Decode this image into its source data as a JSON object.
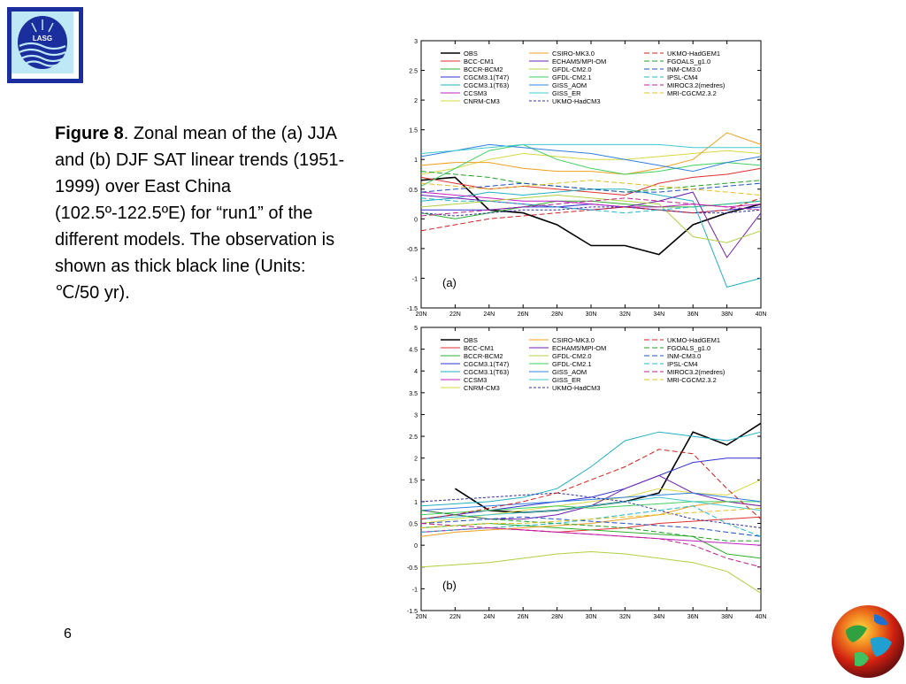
{
  "logo": {
    "text": "LASG",
    "color": "#1a2e9e"
  },
  "caption": {
    "bold": "Figure 8",
    "text": ". Zonal mean of the (a) JJA and (b) DJF SAT linear trends (1951-1999) over East China (102.5º-122.5ºE) for “run1” of the different models. The observation is shown as thick black line (Units: ℃/50 yr)."
  },
  "page_number": "6",
  "chart_data": [
    {
      "type": "line",
      "panel_label": "(a)",
      "x": [
        20,
        22,
        24,
        26,
        28,
        30,
        32,
        34,
        36,
        38,
        40
      ],
      "xticklabels": [
        "20N",
        "22N",
        "24N",
        "26N",
        "28N",
        "30N",
        "32N",
        "34N",
        "36N",
        "38N",
        "40N"
      ],
      "ylim": [
        -1.5,
        3
      ],
      "yticks": [
        -1.5,
        -1,
        -0.5,
        0,
        0.5,
        1,
        1.5,
        2,
        2.5,
        3
      ],
      "yticklabels": [
        "-1.5",
        "-1",
        "-0.5",
        "0",
        "0.5",
        "1",
        "1.5",
        "2",
        "2.5",
        "3"
      ],
      "series": [
        {
          "name": "OBS",
          "color": "#000000",
          "dash": "",
          "width": 1.6,
          "values": [
            0.65,
            0.7,
            0.15,
            0.1,
            -0.1,
            -0.45,
            -0.45,
            -0.6,
            -0.1,
            0.1,
            0.25
          ]
        },
        {
          "name": "BCC-CM1",
          "color": "#e03030",
          "dash": "",
          "values": [
            0.7,
            0.6,
            0.5,
            0.55,
            0.5,
            0.45,
            0.4,
            0.6,
            0.7,
            0.75,
            0.85
          ]
        },
        {
          "name": "BCCR-BCM2",
          "color": "#30b030",
          "dash": "",
          "values": [
            0.1,
            0.0,
            0.1,
            0.2,
            0.3,
            0.3,
            0.25,
            0.2,
            0.2,
            0.25,
            0.3
          ]
        },
        {
          "name": "CGCM3.1(T47)",
          "color": "#3030d0",
          "dash": "",
          "values": [
            0.15,
            0.15,
            0.15,
            0.2,
            0.2,
            0.25,
            0.2,
            0.15,
            0.1,
            0.15,
            0.2
          ]
        },
        {
          "name": "CGCM3.1(T63)",
          "color": "#20b0c0",
          "dash": "",
          "values": [
            0.3,
            0.35,
            0.45,
            0.4,
            0.45,
            0.5,
            0.5,
            0.4,
            0.3,
            -1.15,
            -1.0
          ]
        },
        {
          "name": "CCSM3",
          "color": "#c020c0",
          "dash": "",
          "values": [
            0.45,
            0.4,
            0.35,
            0.3,
            0.3,
            0.25,
            0.2,
            0.2,
            0.25,
            0.2,
            0.25
          ]
        },
        {
          "name": "CNRM-CM3",
          "color": "#d8d840",
          "dash": "",
          "values": [
            0.75,
            0.85,
            1.0,
            1.1,
            1.05,
            1.0,
            1.0,
            1.05,
            1.1,
            1.15,
            1.1
          ]
        },
        {
          "name": "CSIRO-MK3.0",
          "color": "#f0a020",
          "dash": "",
          "values": [
            0.9,
            0.95,
            0.95,
            0.85,
            0.8,
            0.8,
            0.75,
            0.85,
            1.0,
            1.45,
            1.25
          ]
        },
        {
          "name": "ECHAM5/MPI-OM",
          "color": "#7020b0",
          "dash": "",
          "values": [
            0.4,
            0.35,
            0.3,
            0.25,
            0.2,
            0.15,
            0.2,
            0.3,
            0.45,
            -0.65,
            0.1
          ]
        },
        {
          "name": "GFDL-CM2.0",
          "color": "#b0d040",
          "dash": "",
          "values": [
            0.2,
            0.25,
            0.3,
            0.35,
            0.4,
            0.35,
            0.3,
            0.25,
            -0.3,
            -0.4,
            -0.2
          ]
        },
        {
          "name": "GFDL-CM2.1",
          "color": "#40d060",
          "dash": "",
          "values": [
            0.55,
            0.85,
            1.15,
            1.25,
            1.0,
            0.85,
            0.75,
            0.8,
            0.9,
            0.95,
            0.9
          ]
        },
        {
          "name": "GISS_AOM",
          "color": "#3080e0",
          "dash": "",
          "values": [
            1.05,
            1.15,
            1.25,
            1.2,
            1.15,
            1.1,
            1.0,
            0.9,
            0.8,
            0.95,
            1.05
          ]
        },
        {
          "name": "GISS_ER",
          "color": "#40c8d0",
          "dash": "",
          "values": [
            1.1,
            1.15,
            1.2,
            1.25,
            1.25,
            1.25,
            1.25,
            1.25,
            1.2,
            1.2,
            1.2
          ]
        },
        {
          "name": "UKMO-HadCM3",
          "color": "#3030a0",
          "dash": "3,2",
          "values": [
            0.1,
            0.05,
            0.1,
            0.15,
            0.15,
            0.2,
            0.2,
            0.15,
            0.1,
            0.1,
            0.15
          ]
        },
        {
          "name": "UKMO-HadGEM1",
          "color": "#d02020",
          "dash": "6,3",
          "values": [
            -0.2,
            -0.1,
            0.0,
            0.05,
            0.1,
            0.15,
            0.2,
            0.15,
            0.1,
            0.15,
            0.35
          ]
        },
        {
          "name": "FGOALS_g1.0",
          "color": "#20a020",
          "dash": "6,3",
          "values": [
            0.8,
            0.75,
            0.7,
            0.6,
            0.55,
            0.5,
            0.45,
            0.5,
            0.55,
            0.6,
            0.65
          ]
        },
        {
          "name": "INM-CM3.0",
          "color": "#2050c0",
          "dash": "6,3",
          "values": [
            0.45,
            0.5,
            0.55,
            0.6,
            0.55,
            0.5,
            0.45,
            0.45,
            0.5,
            0.55,
            0.6
          ]
        },
        {
          "name": "IPSL-CM4",
          "color": "#20b8c8",
          "dash": "6,3",
          "values": [
            0.35,
            0.3,
            0.3,
            0.25,
            0.2,
            0.15,
            0.1,
            0.15,
            0.2,
            0.25,
            0.3
          ]
        },
        {
          "name": "MIROC3.2(medres)",
          "color": "#c02090",
          "dash": "6,3",
          "values": [
            0.05,
            0.1,
            0.15,
            0.2,
            0.25,
            0.3,
            0.35,
            0.3,
            0.25,
            0.2,
            0.15
          ]
        },
        {
          "name": "MRI-CGCM2.3.2",
          "color": "#e0c020",
          "dash": "6,3",
          "values": [
            0.6,
            0.55,
            0.5,
            0.55,
            0.6,
            0.65,
            0.6,
            0.55,
            0.5,
            0.45,
            0.4
          ]
        }
      ]
    },
    {
      "type": "line",
      "panel_label": "(b)",
      "x": [
        20,
        22,
        24,
        26,
        28,
        30,
        32,
        34,
        36,
        38,
        40
      ],
      "xticklabels": [
        "20N",
        "22N",
        "24N",
        "26N",
        "28N",
        "30N",
        "32N",
        "34N",
        "36N",
        "38N",
        "40N"
      ],
      "ylim": [
        -1.5,
        5
      ],
      "yticks": [
        -1.5,
        -1,
        -0.5,
        0,
        0.5,
        1,
        1.5,
        2,
        2.5,
        3,
        3.5,
        4,
        4.5,
        5
      ],
      "yticklabels": [
        "-1.5",
        "-1",
        "-0.5",
        "0",
        "0.5",
        "1",
        "1.5",
        "2",
        "2.5",
        "3",
        "3.5",
        "4",
        "4.5",
        "5"
      ],
      "series": [
        {
          "name": "OBS",
          "color": "#000000",
          "dash": "",
          "width": 1.6,
          "values": [
            null,
            1.3,
            0.8,
            0.75,
            0.8,
            0.9,
            1.0,
            1.2,
            2.6,
            2.3,
            2.8
          ]
        },
        {
          "name": "BCC-CM1",
          "color": "#e03030",
          "dash": "",
          "values": [
            0.3,
            0.35,
            0.4,
            0.35,
            0.3,
            0.35,
            0.4,
            0.5,
            0.55,
            0.6,
            0.65
          ]
        },
        {
          "name": "BCCR-BCM2",
          "color": "#30b030",
          "dash": "",
          "values": [
            0.4,
            0.45,
            0.5,
            0.45,
            0.4,
            0.35,
            0.3,
            0.25,
            0.2,
            -0.2,
            -0.3
          ]
        },
        {
          "name": "CGCM3.1(T47)",
          "color": "#3030d0",
          "dash": "",
          "values": [
            0.6,
            0.7,
            0.8,
            0.9,
            1.0,
            1.1,
            1.3,
            1.6,
            1.9,
            2.0,
            2.0
          ]
        },
        {
          "name": "CGCM3.1(T63)",
          "color": "#20b0c0",
          "dash": "",
          "values": [
            0.9,
            0.95,
            1.0,
            1.1,
            1.3,
            1.8,
            2.4,
            2.6,
            2.5,
            2.4,
            2.6
          ]
        },
        {
          "name": "CCSM3",
          "color": "#c020c0",
          "dash": "",
          "values": [
            0.3,
            0.35,
            0.4,
            0.35,
            0.3,
            0.25,
            0.2,
            0.15,
            0.1,
            0.05,
            0.0
          ]
        },
        {
          "name": "CNRM-CM3",
          "color": "#d8d840",
          "dash": "",
          "values": [
            0.5,
            0.6,
            0.7,
            0.8,
            0.9,
            1.0,
            1.1,
            1.3,
            1.2,
            1.15,
            1.5
          ]
        },
        {
          "name": "CSIRO-MK3.0",
          "color": "#f0a020",
          "dash": "",
          "values": [
            0.2,
            0.3,
            0.35,
            0.4,
            0.45,
            0.5,
            0.6,
            0.7,
            0.9,
            1.0,
            0.9
          ]
        },
        {
          "name": "ECHAM5/MPI-OM",
          "color": "#7020b0",
          "dash": "",
          "values": [
            0.8,
            0.7,
            0.6,
            0.6,
            0.7,
            0.9,
            1.3,
            1.6,
            1.2,
            1.0,
            0.9
          ]
        },
        {
          "name": "GFDL-CM2.0",
          "color": "#b0d040",
          "dash": "",
          "values": [
            -0.5,
            -0.45,
            -0.4,
            -0.3,
            -0.2,
            -0.15,
            -0.2,
            -0.3,
            -0.4,
            -0.6,
            -1.1
          ]
        },
        {
          "name": "GFDL-CM2.1",
          "color": "#40d060",
          "dash": "",
          "values": [
            0.7,
            0.75,
            0.8,
            0.85,
            0.9,
            0.85,
            0.9,
            0.95,
            1.0,
            1.0,
            1.0
          ]
        },
        {
          "name": "GISS_AOM",
          "color": "#3080e0",
          "dash": "",
          "values": [
            0.8,
            0.85,
            0.9,
            0.95,
            1.0,
            1.05,
            1.1,
            1.15,
            1.2,
            1.1,
            1.0
          ]
        },
        {
          "name": "GISS_ER",
          "color": "#40c8d0",
          "dash": "",
          "values": [
            0.6,
            0.65,
            0.7,
            0.75,
            0.8,
            0.9,
            1.0,
            1.1,
            1.0,
            0.9,
            0.8
          ]
        },
        {
          "name": "UKMO-HadCM3",
          "color": "#3030a0",
          "dash": "3,2",
          "values": [
            1.0,
            1.05,
            1.1,
            1.15,
            1.2,
            1.1,
            1.0,
            0.8,
            0.6,
            0.5,
            0.4
          ]
        },
        {
          "name": "UKMO-HadGEM1",
          "color": "#d02020",
          "dash": "6,3",
          "values": [
            0.6,
            0.7,
            0.85,
            1.0,
            1.2,
            1.5,
            1.8,
            2.2,
            2.1,
            1.3,
            0.6
          ]
        },
        {
          "name": "FGOALS_g1.0",
          "color": "#20a020",
          "dash": "6,3",
          "values": [
            0.8,
            0.7,
            0.6,
            0.55,
            0.5,
            0.45,
            0.4,
            0.3,
            0.2,
            0.1,
            0.1
          ]
        },
        {
          "name": "INM-CM3.0",
          "color": "#2050c0",
          "dash": "6,3",
          "values": [
            0.5,
            0.55,
            0.6,
            0.65,
            0.6,
            0.55,
            0.5,
            0.45,
            0.4,
            0.3,
            0.2
          ]
        },
        {
          "name": "IPSL-CM4",
          "color": "#20b8c8",
          "dash": "6,3",
          "values": [
            0.3,
            0.35,
            0.4,
            0.45,
            0.5,
            0.6,
            0.7,
            0.8,
            0.9,
            0.5,
            0.2
          ]
        },
        {
          "name": "MIROC3.2(medres)",
          "color": "#c02090",
          "dash": "6,3",
          "values": [
            0.5,
            0.45,
            0.4,
            0.35,
            0.3,
            0.25,
            0.2,
            0.15,
            0.0,
            -0.3,
            -0.5
          ]
        },
        {
          "name": "MRI-CGCM2.3.2",
          "color": "#e0c020",
          "dash": "6,3",
          "values": [
            0.4,
            0.45,
            0.5,
            0.5,
            0.55,
            0.6,
            0.65,
            0.7,
            0.75,
            0.8,
            0.85
          ]
        }
      ]
    }
  ]
}
